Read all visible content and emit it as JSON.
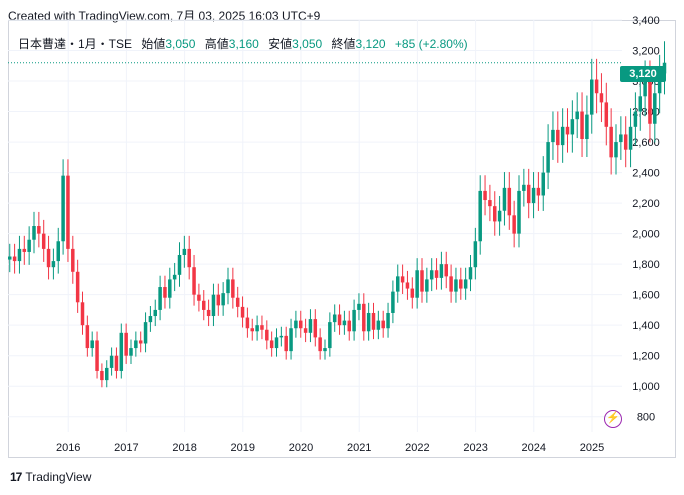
{
  "header": {
    "credit": "Created with TradingView.com, 7月 03, 2025 16:03 UTC+9"
  },
  "legend": {
    "symbol": "日本曹達・1月・TSE",
    "open_label": "始値",
    "open": "3,050",
    "high_label": "高値",
    "high": "3,160",
    "low_label": "安値",
    "low": "3,050",
    "close_label": "終値",
    "close": "3,120",
    "change": "+85 (+2.80%)"
  },
  "last_price_badge": "3,120",
  "footer": {
    "brand": "TradingView",
    "logo": "17"
  },
  "colors": {
    "up": "#089981",
    "down": "#f23645",
    "last_line": "#089981",
    "grid": "#f0f3fa",
    "event_icon": "#9c27b0"
  },
  "icons": {
    "event_marker": "lightning-icon"
  },
  "chart_data": {
    "type": "candlestick",
    "interval": "1M",
    "ylim": [
      700,
      3400
    ],
    "y_ticks": [
      800,
      1000,
      1200,
      1400,
      1600,
      1800,
      2000,
      2200,
      2400,
      2600,
      2800,
      3000,
      3200,
      3400
    ],
    "y_tick_labels": [
      "800",
      "1,000",
      "1,200",
      "1,400",
      "1,600",
      "1,800",
      "2,000",
      "2,200",
      "2,400",
      "2,600",
      "2,800",
      "3,000",
      "3,200",
      "3,400"
    ],
    "x_tick_labels": [
      "2016",
      "2017",
      "2018",
      "2019",
      "2020",
      "2021",
      "2022",
      "2023",
      "2024",
      "2025"
    ],
    "x_tick_years": [
      2016,
      2017,
      2018,
      2019,
      2020,
      2021,
      2022,
      2023,
      2024,
      2025
    ],
    "first_month": "2015-01",
    "last_price": 3120,
    "closes": [
      1850,
      1820,
      1900,
      1880,
      1960,
      2050,
      2000,
      1900,
      1780,
      1820,
      1950,
      2380,
      1900,
      1750,
      1550,
      1400,
      1250,
      1300,
      1100,
      1040,
      1120,
      1200,
      1100,
      1350,
      1200,
      1250,
      1300,
      1280,
      1420,
      1460,
      1500,
      1650,
      1580,
      1700,
      1730,
      1860,
      1900,
      1780,
      1600,
      1560,
      1500,
      1460,
      1600,
      1530,
      1610,
      1700,
      1580,
      1520,
      1450,
      1380,
      1360,
      1400,
      1370,
      1300,
      1250,
      1320,
      1330,
      1230,
      1380,
      1430,
      1380,
      1350,
      1440,
      1320,
      1230,
      1250,
      1420,
      1470,
      1400,
      1430,
      1360,
      1500,
      1540,
      1360,
      1480,
      1370,
      1430,
      1380,
      1480,
      1620,
      1720,
      1680,
      1640,
      1580,
      1760,
      1620,
      1700,
      1760,
      1710,
      1800,
      1720,
      1620,
      1700,
      1640,
      1700,
      1780,
      1950,
      2280,
      2220,
      2180,
      2080,
      2150,
      2300,
      2120,
      2000,
      2280,
      2320,
      2200,
      2300,
      2250,
      2400,
      2600,
      2680,
      2580,
      2700,
      2650,
      2750,
      2800,
      2620,
      2780,
      3010,
      2920,
      2860,
      2700,
      2500,
      2600,
      2650,
      2550,
      2700,
      2800,
      2900,
      3000,
      2720,
      2920,
      3035,
      3120
    ],
    "opens": [
      1830,
      1850,
      1820,
      1900,
      1880,
      1960,
      2050,
      2000,
      1900,
      1780,
      1820,
      1950,
      2380,
      1900,
      1750,
      1550,
      1400,
      1250,
      1300,
      1100,
      1040,
      1120,
      1200,
      1100,
      1350,
      1200,
      1250,
      1300,
      1280,
      1420,
      1460,
      1500,
      1650,
      1580,
      1700,
      1730,
      1860,
      1900,
      1780,
      1600,
      1560,
      1500,
      1460,
      1600,
      1530,
      1610,
      1700,
      1580,
      1520,
      1450,
      1380,
      1360,
      1400,
      1370,
      1300,
      1250,
      1320,
      1330,
      1230,
      1380,
      1430,
      1380,
      1350,
      1440,
      1320,
      1230,
      1250,
      1420,
      1470,
      1400,
      1430,
      1360,
      1500,
      1540,
      1360,
      1480,
      1370,
      1430,
      1380,
      1480,
      1620,
      1720,
      1680,
      1640,
      1580,
      1760,
      1620,
      1700,
      1760,
      1710,
      1800,
      1720,
      1620,
      1700,
      1640,
      1700,
      1780,
      1950,
      2280,
      2220,
      2180,
      2080,
      2150,
      2300,
      2120,
      2000,
      2280,
      2320,
      2200,
      2300,
      2250,
      2400,
      2600,
      2680,
      2580,
      2700,
      2650,
      2750,
      2800,
      2620,
      2780,
      3010,
      2920,
      2860,
      2700,
      2500,
      2600,
      2650,
      2550,
      2700,
      2800,
      2900,
      3000,
      2720,
      2920,
      3050
    ]
  }
}
